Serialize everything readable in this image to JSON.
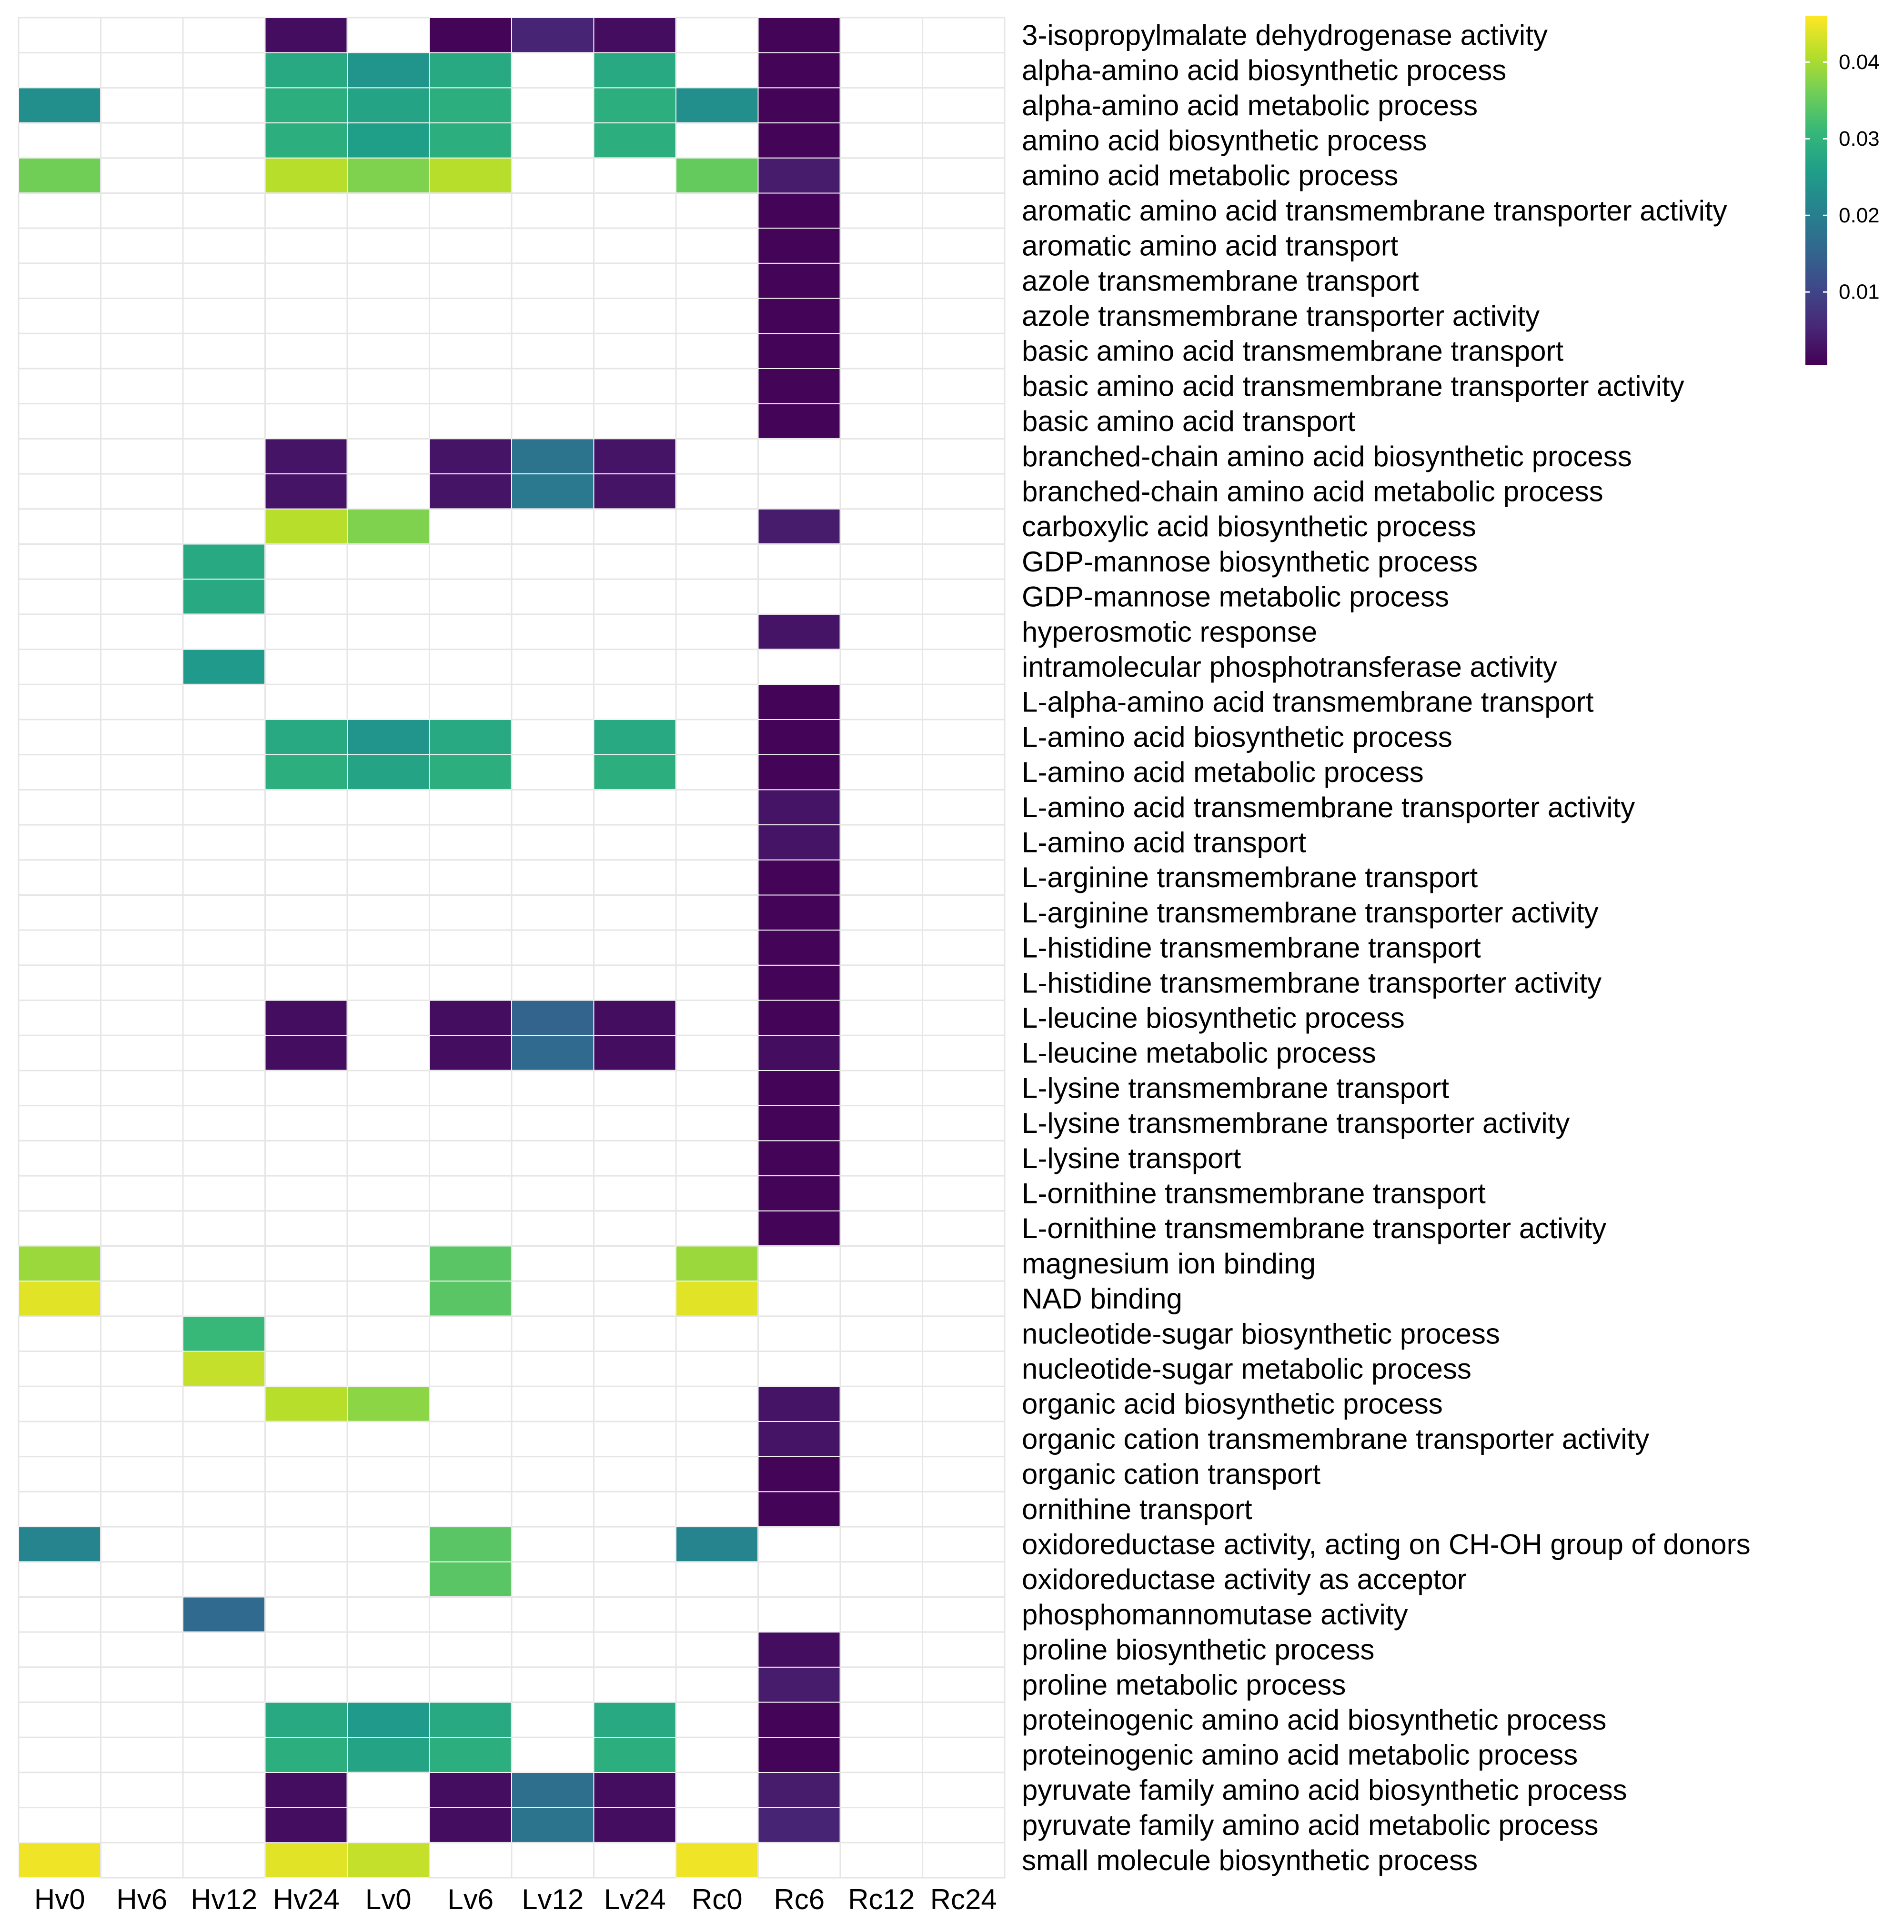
{
  "chart_data": {
    "type": "heatmap",
    "title": "",
    "xlabel": "",
    "ylabel": "",
    "columns": [
      "Hv0",
      "Hv6",
      "Hv12",
      "Hv24",
      "Lv0",
      "Lv6",
      "Lv12",
      "Lv24",
      "Rc0",
      "Rc6",
      "Rc12",
      "Rc24"
    ],
    "rows": [
      "3-isopropylmalate dehydrogenase activity",
      "alpha-amino acid biosynthetic process",
      "alpha-amino acid metabolic process",
      "amino acid biosynthetic process",
      "amino acid metabolic process",
      "aromatic amino acid transmembrane transporter activity",
      "aromatic amino acid transport",
      "azole transmembrane transport",
      "azole transmembrane transporter activity",
      "basic amino acid transmembrane transport",
      "basic amino acid transmembrane transporter activity",
      "basic amino acid transport",
      "branched-chain amino acid biosynthetic process",
      "branched-chain amino acid metabolic process",
      "carboxylic acid biosynthetic process",
      "GDP-mannose biosynthetic process",
      "GDP-mannose metabolic process",
      "hyperosmotic response",
      "intramolecular phosphotransferase activity",
      "L-alpha-amino acid transmembrane transport",
      "L-amino acid biosynthetic process",
      "L-amino acid metabolic process",
      "L-amino acid transmembrane transporter activity",
      "L-amino acid transport",
      "L-arginine transmembrane transport",
      "L-arginine transmembrane transporter activity",
      "L-histidine transmembrane transport",
      "L-histidine transmembrane transporter activity",
      "L-leucine biosynthetic process",
      "L-leucine metabolic process",
      "L-lysine transmembrane transport",
      "L-lysine transmembrane transporter activity",
      "L-lysine transport",
      "L-ornithine transmembrane transport",
      "L-ornithine transmembrane transporter activity",
      "magnesium ion binding",
      "NAD binding",
      "nucleotide-sugar biosynthetic process",
      "nucleotide-sugar metabolic process",
      "organic acid biosynthetic process",
      "organic cation transmembrane transporter activity",
      "organic cation transport",
      "ornithine transport",
      "oxidoreductase activity, acting on CH-OH group of donors",
      "oxidoreductase activity as acceptor",
      "phosphomannomutase activity",
      "proline biosynthetic process",
      "proline metabolic process",
      "proteinogenic amino acid biosynthetic process",
      "proteinogenic amino acid metabolic process",
      "pyruvate family amino acid biosynthetic process",
      "pyruvate family amino acid metabolic process",
      "small molecule biosynthetic process"
    ],
    "values": [
      [
        null,
        null,
        null,
        0.002,
        null,
        0.001,
        0.005,
        0.002,
        null,
        0.001,
        null,
        null
      ],
      [
        null,
        null,
        null,
        0.028,
        0.024,
        0.028,
        null,
        0.028,
        null,
        0.001,
        null,
        null
      ],
      [
        0.023,
        null,
        null,
        0.029,
        0.027,
        0.029,
        null,
        0.029,
        0.023,
        0.001,
        null,
        null
      ],
      [
        null,
        null,
        null,
        0.029,
        0.026,
        0.029,
        null,
        0.029,
        null,
        0.001,
        null,
        null
      ],
      [
        0.036,
        null,
        null,
        0.041,
        0.037,
        0.041,
        null,
        null,
        0.035,
        0.004,
        null,
        null
      ],
      [
        null,
        null,
        null,
        null,
        null,
        null,
        null,
        null,
        null,
        0.001,
        null,
        null
      ],
      [
        null,
        null,
        null,
        null,
        null,
        null,
        null,
        null,
        null,
        0.001,
        null,
        null
      ],
      [
        null,
        null,
        null,
        null,
        null,
        null,
        null,
        null,
        null,
        0.001,
        null,
        null
      ],
      [
        null,
        null,
        null,
        null,
        null,
        null,
        null,
        null,
        null,
        0.001,
        null,
        null
      ],
      [
        null,
        null,
        null,
        null,
        null,
        null,
        null,
        null,
        null,
        0.001,
        null,
        null
      ],
      [
        null,
        null,
        null,
        null,
        null,
        null,
        null,
        null,
        null,
        0.001,
        null,
        null
      ],
      [
        null,
        null,
        null,
        null,
        null,
        null,
        null,
        null,
        null,
        0.001,
        null,
        null
      ],
      [
        null,
        null,
        null,
        0.003,
        null,
        0.003,
        0.018,
        0.003,
        null,
        null,
        null,
        null
      ],
      [
        null,
        null,
        null,
        0.003,
        null,
        0.003,
        0.019,
        0.003,
        null,
        null,
        null,
        null
      ],
      [
        null,
        null,
        null,
        0.041,
        0.037,
        null,
        null,
        null,
        null,
        0.004,
        null,
        null
      ],
      [
        null,
        null,
        0.028,
        null,
        null,
        null,
        null,
        null,
        null,
        null,
        null,
        null
      ],
      [
        null,
        null,
        0.028,
        null,
        null,
        null,
        null,
        null,
        null,
        null,
        null,
        null
      ],
      [
        null,
        null,
        null,
        null,
        null,
        null,
        null,
        null,
        null,
        0.003,
        null,
        null
      ],
      [
        null,
        null,
        0.025,
        null,
        null,
        null,
        null,
        null,
        null,
        null,
        null,
        null
      ],
      [
        null,
        null,
        null,
        null,
        null,
        null,
        null,
        null,
        null,
        0.001,
        null,
        null
      ],
      [
        null,
        null,
        null,
        0.028,
        0.024,
        0.028,
        null,
        0.028,
        null,
        0.001,
        null,
        null
      ],
      [
        null,
        null,
        null,
        0.029,
        0.027,
        0.029,
        null,
        0.029,
        null,
        0.001,
        null,
        null
      ],
      [
        null,
        null,
        null,
        null,
        null,
        null,
        null,
        null,
        null,
        0.003,
        null,
        null
      ],
      [
        null,
        null,
        null,
        null,
        null,
        null,
        null,
        null,
        null,
        0.003,
        null,
        null
      ],
      [
        null,
        null,
        null,
        null,
        null,
        null,
        null,
        null,
        null,
        0.001,
        null,
        null
      ],
      [
        null,
        null,
        null,
        null,
        null,
        null,
        null,
        null,
        null,
        0.001,
        null,
        null
      ],
      [
        null,
        null,
        null,
        null,
        null,
        null,
        null,
        null,
        null,
        0.001,
        null,
        null
      ],
      [
        null,
        null,
        null,
        null,
        null,
        null,
        null,
        null,
        null,
        0.001,
        null,
        null
      ],
      [
        null,
        null,
        null,
        0.002,
        null,
        0.002,
        0.015,
        0.002,
        null,
        0.001,
        null,
        null
      ],
      [
        null,
        null,
        null,
        0.002,
        null,
        0.002,
        0.016,
        0.002,
        null,
        0.002,
        null,
        null
      ],
      [
        null,
        null,
        null,
        null,
        null,
        null,
        null,
        null,
        null,
        0.001,
        null,
        null
      ],
      [
        null,
        null,
        null,
        null,
        null,
        null,
        null,
        null,
        null,
        0.001,
        null,
        null
      ],
      [
        null,
        null,
        null,
        null,
        null,
        null,
        null,
        null,
        null,
        0.001,
        null,
        null
      ],
      [
        null,
        null,
        null,
        null,
        null,
        null,
        null,
        null,
        null,
        0.001,
        null,
        null
      ],
      [
        null,
        null,
        null,
        null,
        null,
        null,
        null,
        null,
        null,
        0.001,
        null,
        null
      ],
      [
        0.039,
        null,
        null,
        null,
        null,
        0.034,
        null,
        null,
        0.039,
        null,
        null,
        null
      ],
      [
        0.044,
        null,
        null,
        null,
        null,
        0.034,
        null,
        null,
        0.044,
        null,
        null,
        null
      ],
      [
        null,
        null,
        0.031,
        null,
        null,
        null,
        null,
        null,
        null,
        null,
        null,
        null
      ],
      [
        null,
        null,
        0.042,
        null,
        null,
        null,
        null,
        null,
        null,
        null,
        null,
        null
      ],
      [
        null,
        null,
        null,
        0.041,
        0.038,
        null,
        null,
        null,
        null,
        0.003,
        null,
        null
      ],
      [
        null,
        null,
        null,
        null,
        null,
        null,
        null,
        null,
        null,
        0.003,
        null,
        null
      ],
      [
        null,
        null,
        null,
        null,
        null,
        null,
        null,
        null,
        null,
        0.001,
        null,
        null
      ],
      [
        null,
        null,
        null,
        null,
        null,
        null,
        null,
        null,
        null,
        0.001,
        null,
        null
      ],
      [
        0.021,
        null,
        null,
        null,
        null,
        0.034,
        null,
        null,
        0.021,
        null,
        null,
        null
      ],
      [
        null,
        null,
        null,
        null,
        null,
        0.034,
        null,
        null,
        null,
        null,
        null,
        null
      ],
      [
        null,
        null,
        0.016,
        null,
        null,
        null,
        null,
        null,
        null,
        null,
        null,
        null
      ],
      [
        null,
        null,
        null,
        null,
        null,
        null,
        null,
        null,
        null,
        0.002,
        null,
        null
      ],
      [
        null,
        null,
        null,
        null,
        null,
        null,
        null,
        null,
        null,
        0.004,
        null,
        null
      ],
      [
        null,
        null,
        null,
        0.028,
        0.025,
        0.028,
        null,
        0.028,
        null,
        0.001,
        null,
        null
      ],
      [
        null,
        null,
        null,
        0.029,
        0.027,
        0.029,
        null,
        0.029,
        null,
        0.001,
        null,
        null
      ],
      [
        null,
        null,
        null,
        0.002,
        null,
        0.002,
        0.017,
        0.002,
        null,
        0.004,
        null,
        null
      ],
      [
        null,
        null,
        null,
        0.002,
        null,
        0.002,
        0.018,
        0.002,
        null,
        0.005,
        null,
        null
      ],
      [
        0.045,
        null,
        null,
        0.044,
        0.042,
        null,
        null,
        null,
        0.045,
        null,
        null,
        null
      ]
    ],
    "colorbar": {
      "min": 0.0005,
      "max": 0.046,
      "ticks": [
        0.01,
        0.02,
        0.03,
        0.04
      ],
      "tick_labels": [
        "0.01",
        "0.02",
        "0.03",
        "0.04"
      ],
      "colors": [
        "#440154",
        "#482878",
        "#3e4989",
        "#31688e",
        "#26828e",
        "#1f9e89",
        "#35b779",
        "#6ece58",
        "#b5de2b",
        "#fde725"
      ]
    },
    "empty_cell_color": "#ffffff",
    "grid_color": "#e6e6e6",
    "legend_position": "top-right"
  }
}
